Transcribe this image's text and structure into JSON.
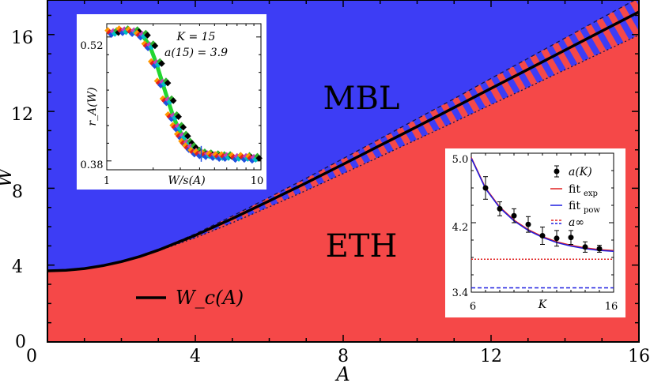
{
  "chart_data": [
    {
      "type": "area",
      "xlabel": "A",
      "ylabel": "W",
      "xlim": [
        0,
        16
      ],
      "ylim": [
        0,
        17.8
      ],
      "x_ticks": [
        "0",
        "4",
        "8",
        "12",
        "16"
      ],
      "y_ticks": [
        "0",
        "4",
        "8",
        "12",
        "16"
      ],
      "region_labels": [
        "MBL",
        "ETH"
      ],
      "legend": "W_c(A)",
      "colors": {
        "mbl": "#3d3df5",
        "eth": "#f54848",
        "line": "#000000"
      },
      "series": [
        {
          "name": "W_c(A)",
          "x": [
            0,
            0.5,
            1,
            1.5,
            2,
            2.5,
            3,
            4,
            5,
            6,
            7,
            8,
            9,
            10,
            11,
            12,
            13,
            14,
            15,
            16
          ],
          "y": [
            3.7,
            3.73,
            3.82,
            3.97,
            4.18,
            4.45,
            4.78,
            5.55,
            6.42,
            7.34,
            8.28,
            9.25,
            10.23,
            11.21,
            12.2,
            13.2,
            14.19,
            15.19,
            16.19,
            17.18
          ]
        }
      ]
    },
    {
      "type": "scatter",
      "annotation_1": "K = 15",
      "annotation_2": "a(15) = 3.9",
      "xlabel": "W/s(A)",
      "ylabel": "r_A(W)",
      "x_scale": "log",
      "xlim": [
        1,
        10
      ],
      "ylim": [
        0.37,
        0.535
      ],
      "x_ticks": [
        "1",
        "10"
      ],
      "y_ticks": [
        "0.38",
        "0.52"
      ],
      "x": [
        1.1,
        1.3,
        1.5,
        1.7,
        1.9,
        2.1,
        2.3,
        2.5,
        2.7,
        2.9,
        3.1,
        3.3,
        3.5,
        3.8,
        4.1,
        4.5,
        5,
        5.5,
        6,
        7,
        8,
        9
      ],
      "y": [
        0.525,
        0.527,
        0.526,
        0.522,
        0.51,
        0.49,
        0.468,
        0.448,
        0.43,
        0.418,
        0.408,
        0.4,
        0.395,
        0.39,
        0.388,
        0.387,
        0.386,
        0.385,
        0.385,
        0.384,
        0.384,
        0.383
      ]
    },
    {
      "type": "line",
      "xlabel": "K",
      "xlim": [
        6,
        16
      ],
      "ylim": [
        3.4,
        5.0
      ],
      "x_ticks": [
        "6",
        "16"
      ],
      "y_ticks": [
        "3.4",
        "4.2",
        "5.0"
      ],
      "legend_entries": [
        "a(K)",
        "fit",
        "fit",
        "a∞"
      ],
      "legend_subscripts": [
        "exp",
        "pow"
      ],
      "series": [
        {
          "name": "a(K)",
          "x": [
            7,
            8,
            9,
            10,
            11,
            12,
            13,
            14,
            15
          ],
          "y": [
            4.6,
            4.36,
            4.28,
            4.18,
            4.05,
            4.02,
            4.03,
            3.92,
            3.9
          ],
          "err": [
            0.13,
            0.08,
            0.08,
            0.09,
            0.1,
            0.09,
            0.08,
            0.06,
            0.04
          ]
        },
        {
          "name": "fit",
          "x": [
            6,
            7,
            8,
            9,
            10,
            11,
            12,
            13,
            14,
            15,
            16
          ],
          "y": [
            4.95,
            4.6,
            4.38,
            4.23,
            4.12,
            4.04,
            3.98,
            3.94,
            3.91,
            3.89,
            3.88
          ]
        },
        {
          "name": "a∞",
          "values": [
            3.78,
            3.45
          ]
        }
      ]
    }
  ]
}
